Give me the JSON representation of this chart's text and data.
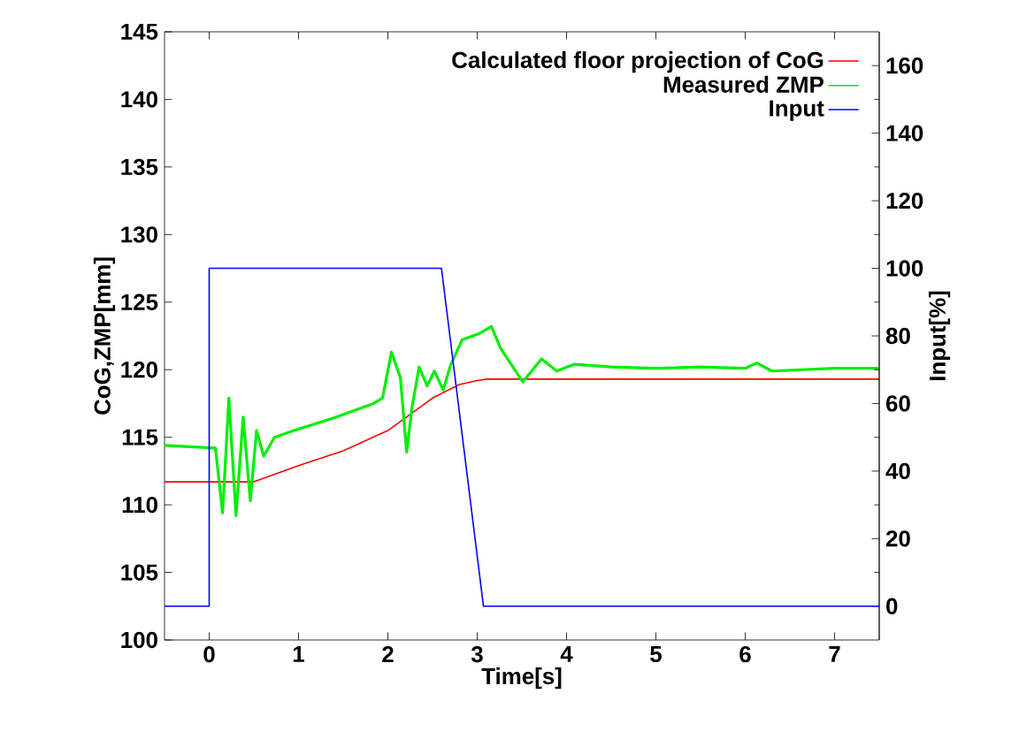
{
  "chart_data": {
    "type": "line",
    "xlabel": "Time[s]",
    "ylabel": "CoG,ZMP[mm]",
    "y2label": "Input[%]",
    "xlim": [
      -0.5,
      7.5
    ],
    "xticks": [
      0,
      1,
      2,
      3,
      4,
      5,
      6,
      7
    ],
    "ylim": [
      100,
      145
    ],
    "yticks": [
      100,
      105,
      110,
      115,
      120,
      125,
      130,
      135,
      140,
      145
    ],
    "y2lim": [
      -10,
      170
    ],
    "y2ticks": [
      0,
      20,
      40,
      60,
      80,
      100,
      120,
      140,
      160
    ],
    "legend": "top right",
    "marker": "none",
    "line_style": "solid",
    "series": [
      {
        "name": "Calculated floor projection of CoG",
        "color": "#ff0000",
        "x": [
          -0.5,
          0.5,
          1.0,
          1.5,
          2.0,
          2.5,
          2.8,
          3.0,
          3.1,
          7.5
        ],
        "values": [
          111.7,
          111.7,
          112.9,
          114.0,
          115.5,
          117.9,
          118.9,
          119.2,
          119.3,
          119.3
        ]
      },
      {
        "name": "Measured ZMP",
        "color": "#00ee00",
        "x": [
          -0.5,
          0.07,
          0.15,
          0.22,
          0.3,
          0.38,
          0.46,
          0.53,
          0.61,
          0.73,
          0.95,
          1.38,
          1.84,
          1.94,
          2.04,
          2.14,
          2.21,
          2.27,
          2.35,
          2.44,
          2.52,
          2.62,
          2.7,
          2.83,
          3.03,
          3.16,
          3.26,
          3.51,
          3.72,
          3.89,
          4.09,
          4.5,
          5.0,
          5.5,
          6.0,
          6.13,
          6.3,
          7.0,
          7.5
        ],
        "values": [
          114.4,
          114.2,
          109.4,
          117.9,
          109.2,
          116.5,
          110.3,
          115.5,
          113.6,
          115.0,
          115.5,
          116.4,
          117.5,
          117.9,
          121.3,
          119.4,
          113.9,
          117.2,
          120.2,
          118.8,
          119.9,
          118.5,
          120.3,
          122.2,
          122.7,
          123.2,
          121.6,
          119.1,
          120.8,
          119.9,
          120.4,
          120.2,
          120.1,
          120.2,
          120.1,
          120.5,
          119.9,
          120.1,
          120.1
        ]
      },
      {
        "name": "Input",
        "color": "#0000ff",
        "axis": "y2",
        "x": [
          -0.5,
          0.0,
          0.0,
          2.6,
          3.07,
          7.5
        ],
        "values": [
          0,
          0,
          100,
          100,
          0,
          0
        ]
      }
    ]
  }
}
